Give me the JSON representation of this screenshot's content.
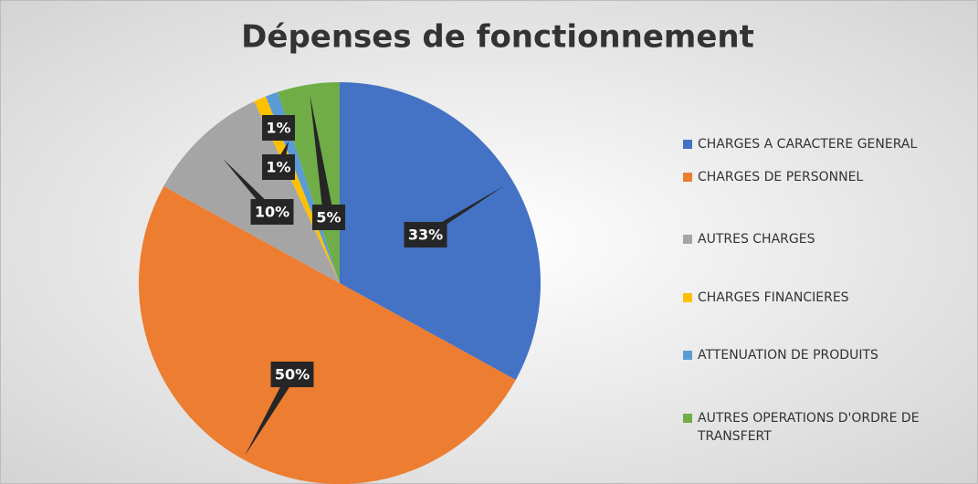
{
  "chart_data": {
    "type": "pie",
    "title": "Dépenses de fonctionnement",
    "categories": [
      "CHARGES A CARACTERE GENERAL",
      "CHARGES DE PERSONNEL",
      "AUTRES CHARGES",
      "CHARGES FINANCIERES",
      "ATTENUATION DE PRODUITS",
      "AUTRES OPERATIONS D'ORDRE DE TRANSFERT"
    ],
    "values": [
      33,
      50,
      10,
      1,
      1,
      5
    ],
    "value_labels": [
      "33%",
      "50%",
      "10%",
      "1%",
      "1%",
      "5%"
    ],
    "colors": [
      "#4472c4",
      "#ed7d31",
      "#a5a5a5",
      "#ffc000",
      "#5b9bd5",
      "#70ad47"
    ],
    "legend": "right"
  }
}
